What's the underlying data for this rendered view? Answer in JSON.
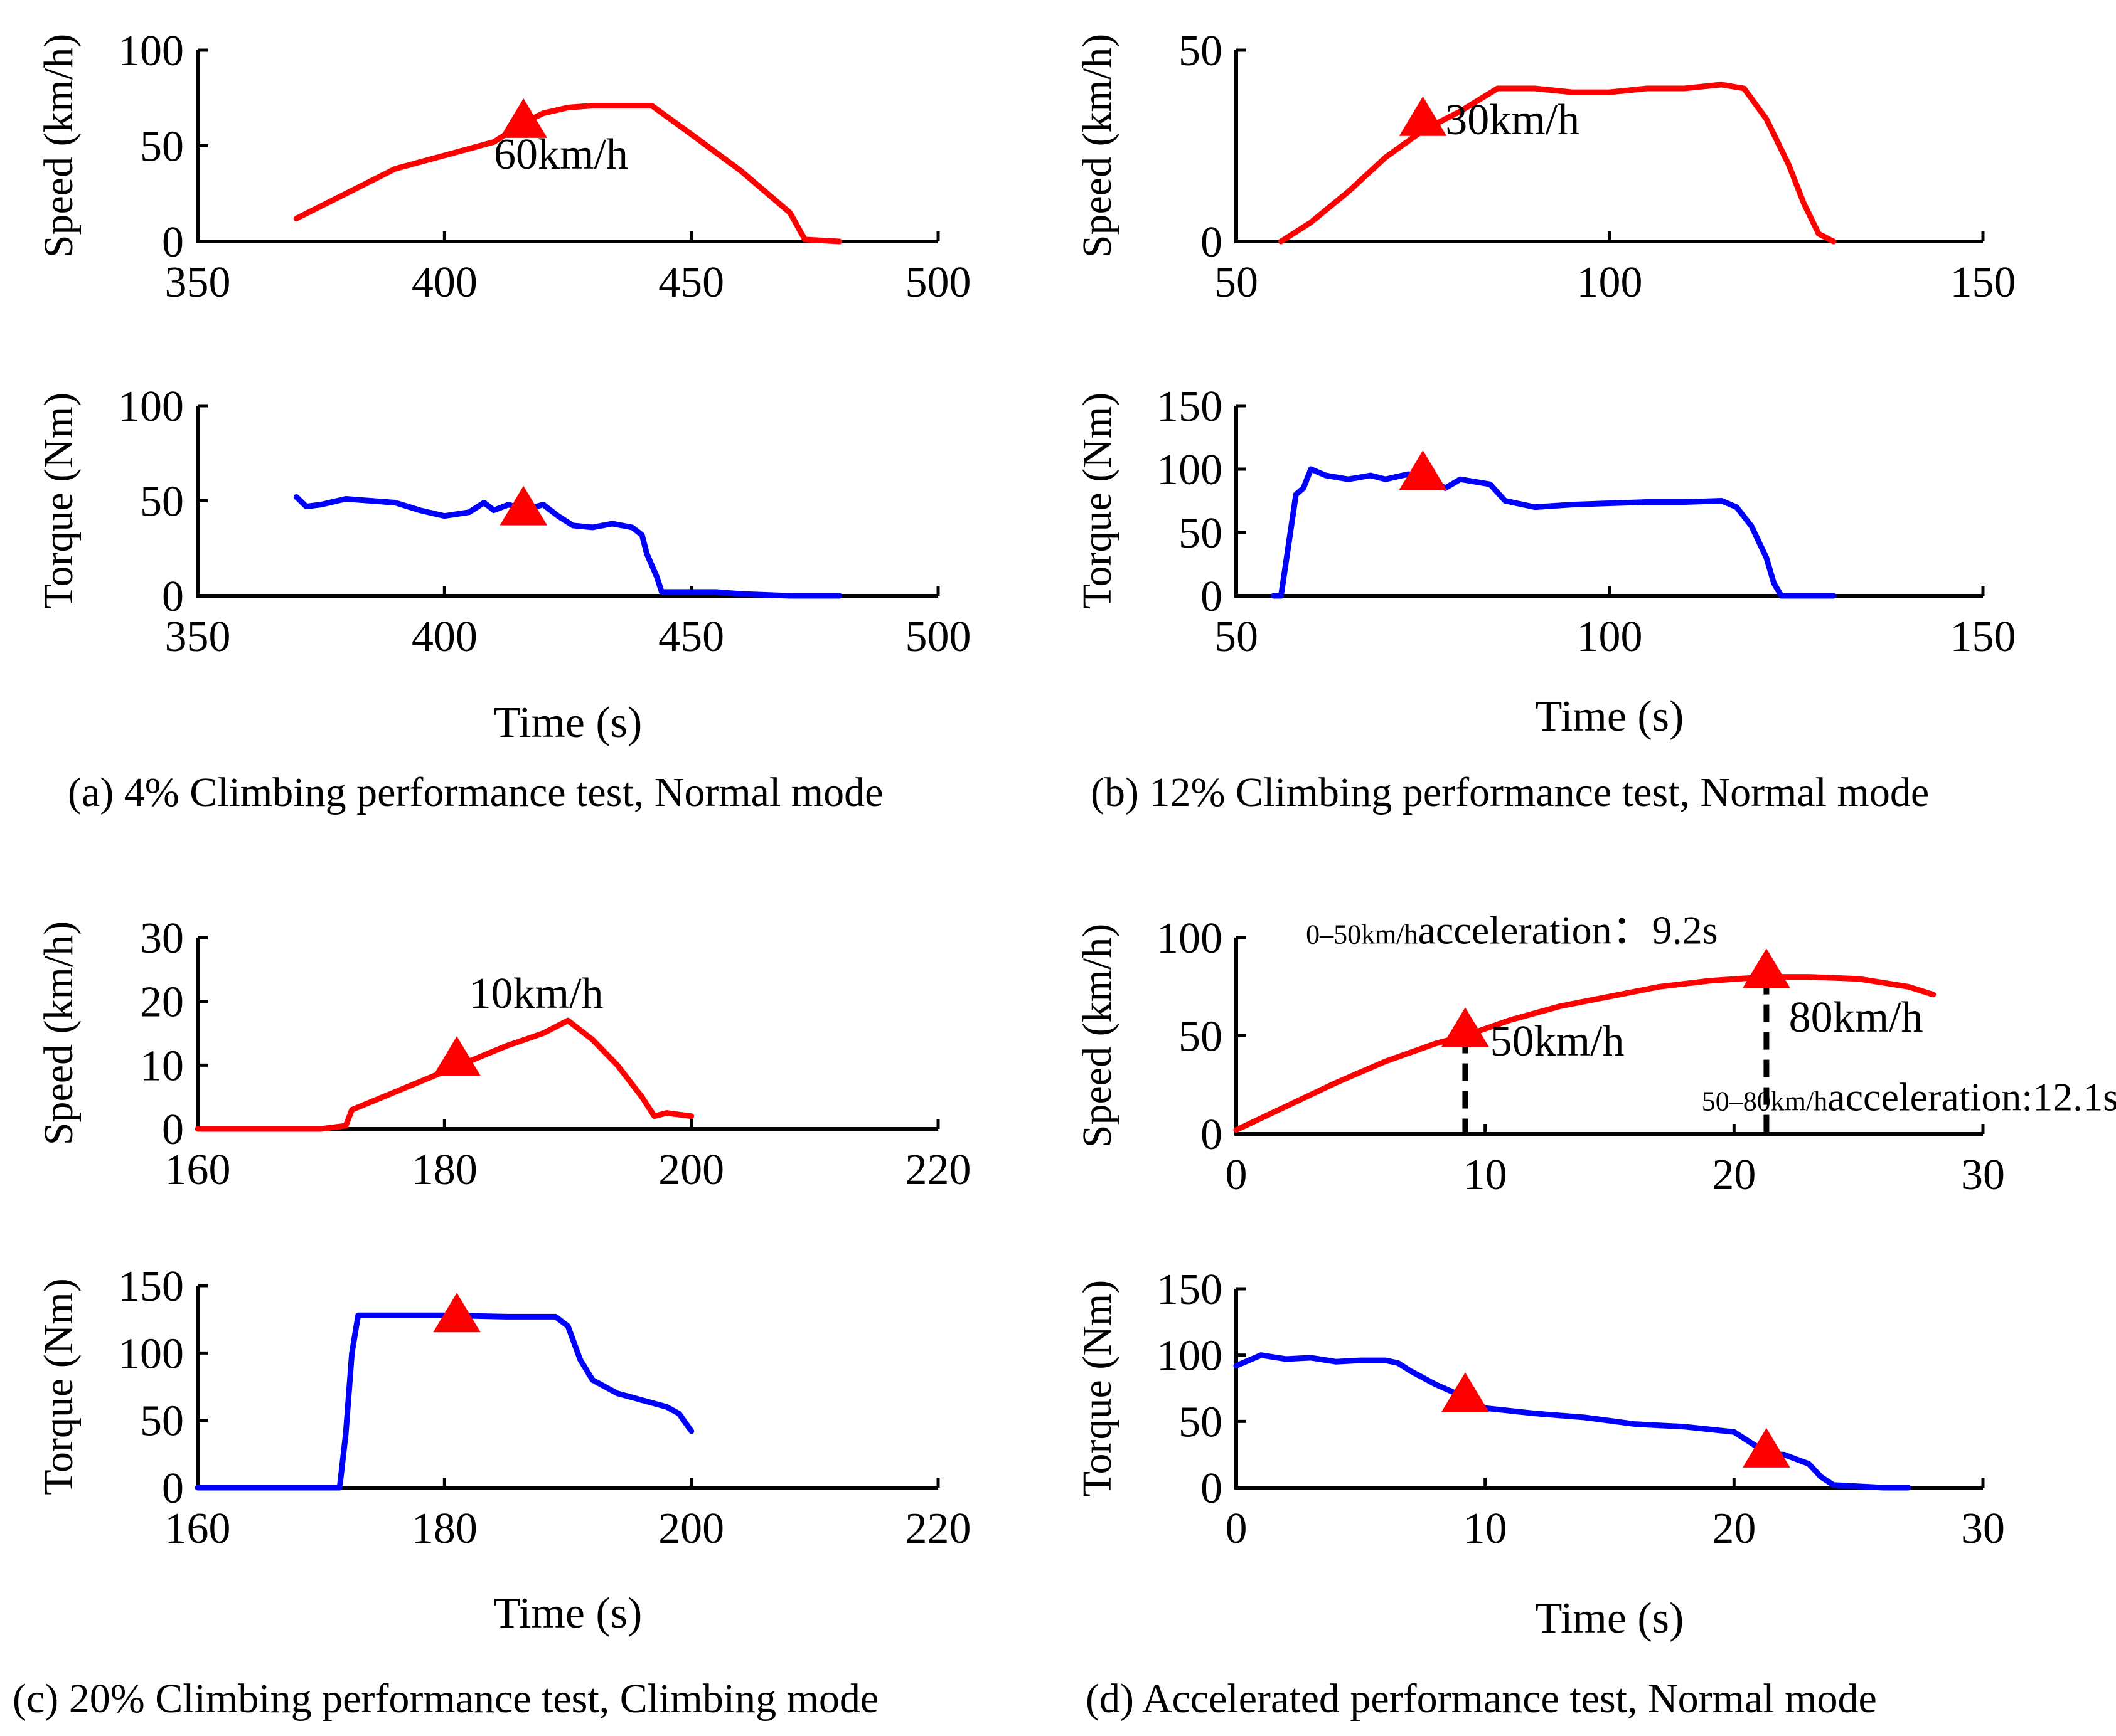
{
  "figure": {
    "colors": {
      "speed": "#ff0000",
      "torque": "#0000ff",
      "marker": "#ff0000",
      "axis": "#000000"
    }
  },
  "chart_data": [
    {
      "id": "a_speed",
      "type": "line",
      "panel": "a",
      "xlabel": "",
      "ylabel": "Speed (km/h)",
      "xlim": [
        350,
        500
      ],
      "ylim": [
        0,
        100
      ],
      "xticks": [
        "350",
        "400",
        "450",
        "500"
      ],
      "yticks": [
        "0",
        "50",
        "100"
      ],
      "series": [
        {
          "name": "Speed",
          "color": "#ff0000",
          "x": [
            370,
            380,
            390,
            400,
            410,
            416,
            420,
            425,
            430,
            435,
            442,
            450,
            460,
            470,
            473,
            480
          ],
          "y": [
            12,
            25,
            38,
            45,
            52,
            62,
            67,
            70,
            71,
            71,
            71,
            56,
            37,
            15,
            1,
            0
          ]
        }
      ],
      "markers": [
        {
          "x": 416,
          "y": 63
        }
      ],
      "annotations": [
        {
          "text": "60km/h",
          "x": 410,
          "y": 38
        }
      ]
    },
    {
      "id": "a_torque",
      "type": "line",
      "panel": "a",
      "xlabel": "Time (s)",
      "ylabel": "Torque (Nm)",
      "xlim": [
        350,
        500
      ],
      "ylim": [
        0,
        100
      ],
      "xticks": [
        "350",
        "400",
        "450",
        "500"
      ],
      "yticks": [
        "0",
        "50",
        "100"
      ],
      "series": [
        {
          "name": "Torque",
          "color": "#0000ff",
          "x": [
            370,
            372,
            375,
            380,
            385,
            390,
            395,
            400,
            405,
            408,
            410,
            413,
            416,
            420,
            423,
            426,
            430,
            434,
            436,
            438,
            440,
            441,
            443,
            444,
            447,
            455,
            460,
            470,
            480
          ],
          "y": [
            52,
            47,
            48,
            51,
            50,
            49,
            45,
            42,
            44,
            49,
            45,
            48,
            45,
            48,
            42,
            37,
            36,
            38,
            37,
            36,
            32,
            22,
            10,
            2,
            2,
            2,
            1,
            0,
            0
          ]
        }
      ],
      "markers": [
        {
          "x": 416,
          "y": 46
        }
      ]
    },
    {
      "id": "b_speed",
      "type": "line",
      "panel": "b",
      "xlabel": "",
      "ylabel": "Speed (km/h)",
      "xlim": [
        50,
        150
      ],
      "ylim": [
        0,
        50
      ],
      "xticks": [
        "50",
        "100",
        "150"
      ],
      "yticks": [
        "0",
        "50"
      ],
      "series": [
        {
          "name": "Speed",
          "color": "#ff0000",
          "x": [
            56,
            60,
            65,
            70,
            75,
            80,
            85,
            90,
            95,
            100,
            105,
            110,
            115,
            118,
            121,
            124,
            126,
            128,
            130
          ],
          "y": [
            0,
            5,
            13,
            22,
            29,
            34,
            40,
            40,
            39,
            39,
            40,
            40,
            41,
            40,
            32,
            20,
            10,
            2,
            0
          ]
        }
      ],
      "markers": [
        {
          "x": 75,
          "y": 32
        }
      ],
      "annotations": [
        {
          "text": "30km/h",
          "x": 78,
          "y": 28
        }
      ]
    },
    {
      "id": "b_torque",
      "type": "line",
      "panel": "b",
      "xlabel": "Time (s)",
      "ylabel": "Torque (Nm)",
      "xlim": [
        50,
        150
      ],
      "ylim": [
        0,
        150
      ],
      "xticks": [
        "50",
        "100",
        "150"
      ],
      "yticks": [
        "0",
        "50",
        "100",
        "150"
      ],
      "series": [
        {
          "name": "Torque",
          "color": "#0000ff",
          "x": [
            55,
            56,
            57,
            58,
            59,
            60,
            62,
            65,
            68,
            70,
            73,
            75,
            78,
            80,
            84,
            86,
            90,
            95,
            100,
            105,
            110,
            115,
            117,
            119,
            121,
            122,
            123,
            125,
            130
          ],
          "y": [
            0,
            0,
            40,
            80,
            85,
            100,
            95,
            92,
            95,
            92,
            96,
            95,
            85,
            92,
            88,
            75,
            70,
            72,
            73,
            74,
            74,
            75,
            70,
            55,
            30,
            10,
            0,
            0,
            0
          ]
        }
      ],
      "markers": [
        {
          "x": 75,
          "y": 97
        }
      ]
    },
    {
      "id": "c_speed",
      "type": "line",
      "panel": "c",
      "xlabel": "",
      "ylabel": "Speed (km/h)",
      "xlim": [
        160,
        220
      ],
      "ylim": [
        0,
        30
      ],
      "xticks": [
        "160",
        "180",
        "200",
        "220"
      ],
      "yticks": [
        "0",
        "10",
        "20",
        "30"
      ],
      "series": [
        {
          "name": "Speed",
          "color": "#ff0000",
          "x": [
            160,
            165,
            170,
            172,
            172.5,
            175,
            180,
            185,
            188,
            190,
            192,
            194,
            196,
            197,
            198,
            200
          ],
          "y": [
            0,
            0,
            0,
            0.5,
            3,
            5,
            9,
            13,
            15,
            17,
            14,
            10,
            5,
            2,
            2.5,
            2
          ]
        }
      ],
      "markers": [
        {
          "x": 181,
          "y": 11
        }
      ],
      "annotations": [
        {
          "text": "10km/h",
          "x": 182,
          "y": 19
        }
      ]
    },
    {
      "id": "c_torque",
      "type": "line",
      "panel": "c",
      "xlabel": "Time (s)",
      "ylabel": "Torque (Nm)",
      "xlim": [
        160,
        220
      ],
      "ylim": [
        0,
        150
      ],
      "xticks": [
        "160",
        "180",
        "200",
        "220"
      ],
      "yticks": [
        "0",
        "50",
        "100",
        "150"
      ],
      "series": [
        {
          "name": "Torque",
          "color": "#0000ff",
          "x": [
            160,
            171.5,
            172,
            172.5,
            173,
            175,
            180,
            185,
            189,
            190,
            191,
            192,
            194,
            196,
            198,
            199,
            200
          ],
          "y": [
            0,
            0,
            40,
            100,
            128,
            128,
            128,
            127,
            127,
            120,
            95,
            80,
            70,
            65,
            60,
            55,
            42
          ]
        }
      ],
      "markers": [
        {
          "x": 181,
          "y": 128
        }
      ]
    },
    {
      "id": "d_speed",
      "type": "line",
      "panel": "d",
      "xlabel": "",
      "ylabel": "Speed (km/h)",
      "xlim": [
        0,
        30
      ],
      "ylim": [
        0,
        100
      ],
      "xticks": [
        "0",
        "10",
        "20",
        "30"
      ],
      "yticks": [
        "0",
        "50",
        "100"
      ],
      "series": [
        {
          "name": "Speed",
          "color": "#ff0000",
          "x": [
            0,
            2,
            4,
            6,
            8,
            9.2,
            11,
            13,
            15,
            17,
            19,
            21.3,
            23,
            25,
            27,
            28
          ],
          "y": [
            2,
            14,
            26,
            37,
            46,
            50,
            58,
            65,
            70,
            75,
            78,
            80,
            80,
            79,
            75,
            71
          ]
        }
      ],
      "markers": [
        {
          "x": 9.2,
          "y": 53
        },
        {
          "x": 21.3,
          "y": 83
        }
      ],
      "vlines": [
        {
          "x": 9.2,
          "y": 50
        },
        {
          "x": 21.3,
          "y": 80
        }
      ],
      "annotations": [
        {
          "text": "50km/h",
          "x": 10.2,
          "y": 40
        },
        {
          "text": "80km/h",
          "x": 22.2,
          "y": 52
        },
        {
          "text_small": "0–50km/h",
          "text": "acceleration：9.2s",
          "x": 2.8,
          "y": 97
        },
        {
          "text_small": "50–80km/h",
          "text": "acceleration:12.1s",
          "x": 18.7,
          "y": 12
        }
      ]
    },
    {
      "id": "d_torque",
      "type": "line",
      "panel": "d",
      "xlabel": "Time (s)",
      "ylabel": "Torque (Nm)",
      "xlim": [
        0,
        30
      ],
      "ylim": [
        0,
        150
      ],
      "xticks": [
        "0",
        "10",
        "20",
        "30"
      ],
      "yticks": [
        "0",
        "50",
        "100",
        "150"
      ],
      "series": [
        {
          "name": "Torque",
          "color": "#0000ff",
          "x": [
            0,
            1,
            2,
            3,
            4,
            5,
            6,
            6.5,
            7,
            8,
            9.2,
            10,
            12,
            14,
            16,
            18,
            20,
            21,
            21.3,
            22,
            23,
            23.5,
            24,
            25,
            26,
            27
          ],
          "y": [
            92,
            100,
            97,
            98,
            95,
            96,
            96,
            94,
            88,
            78,
            68,
            60,
            56,
            53,
            48,
            46,
            42,
            30,
            25,
            25,
            18,
            8,
            2,
            1,
            0,
            0
          ]
        }
      ],
      "markers": [
        {
          "x": 9.2,
          "y": 70
        },
        {
          "x": 21.3,
          "y": 28
        }
      ]
    }
  ],
  "captions": {
    "a": "(a) 4% Climbing performance test, Normal mode",
    "b": "(b) 12% Climbing performance test, Normal mode",
    "c": "(c) 20% Climbing performance test, Climbing mode",
    "d": "(d) Accelerated performance test, Normal mode"
  }
}
